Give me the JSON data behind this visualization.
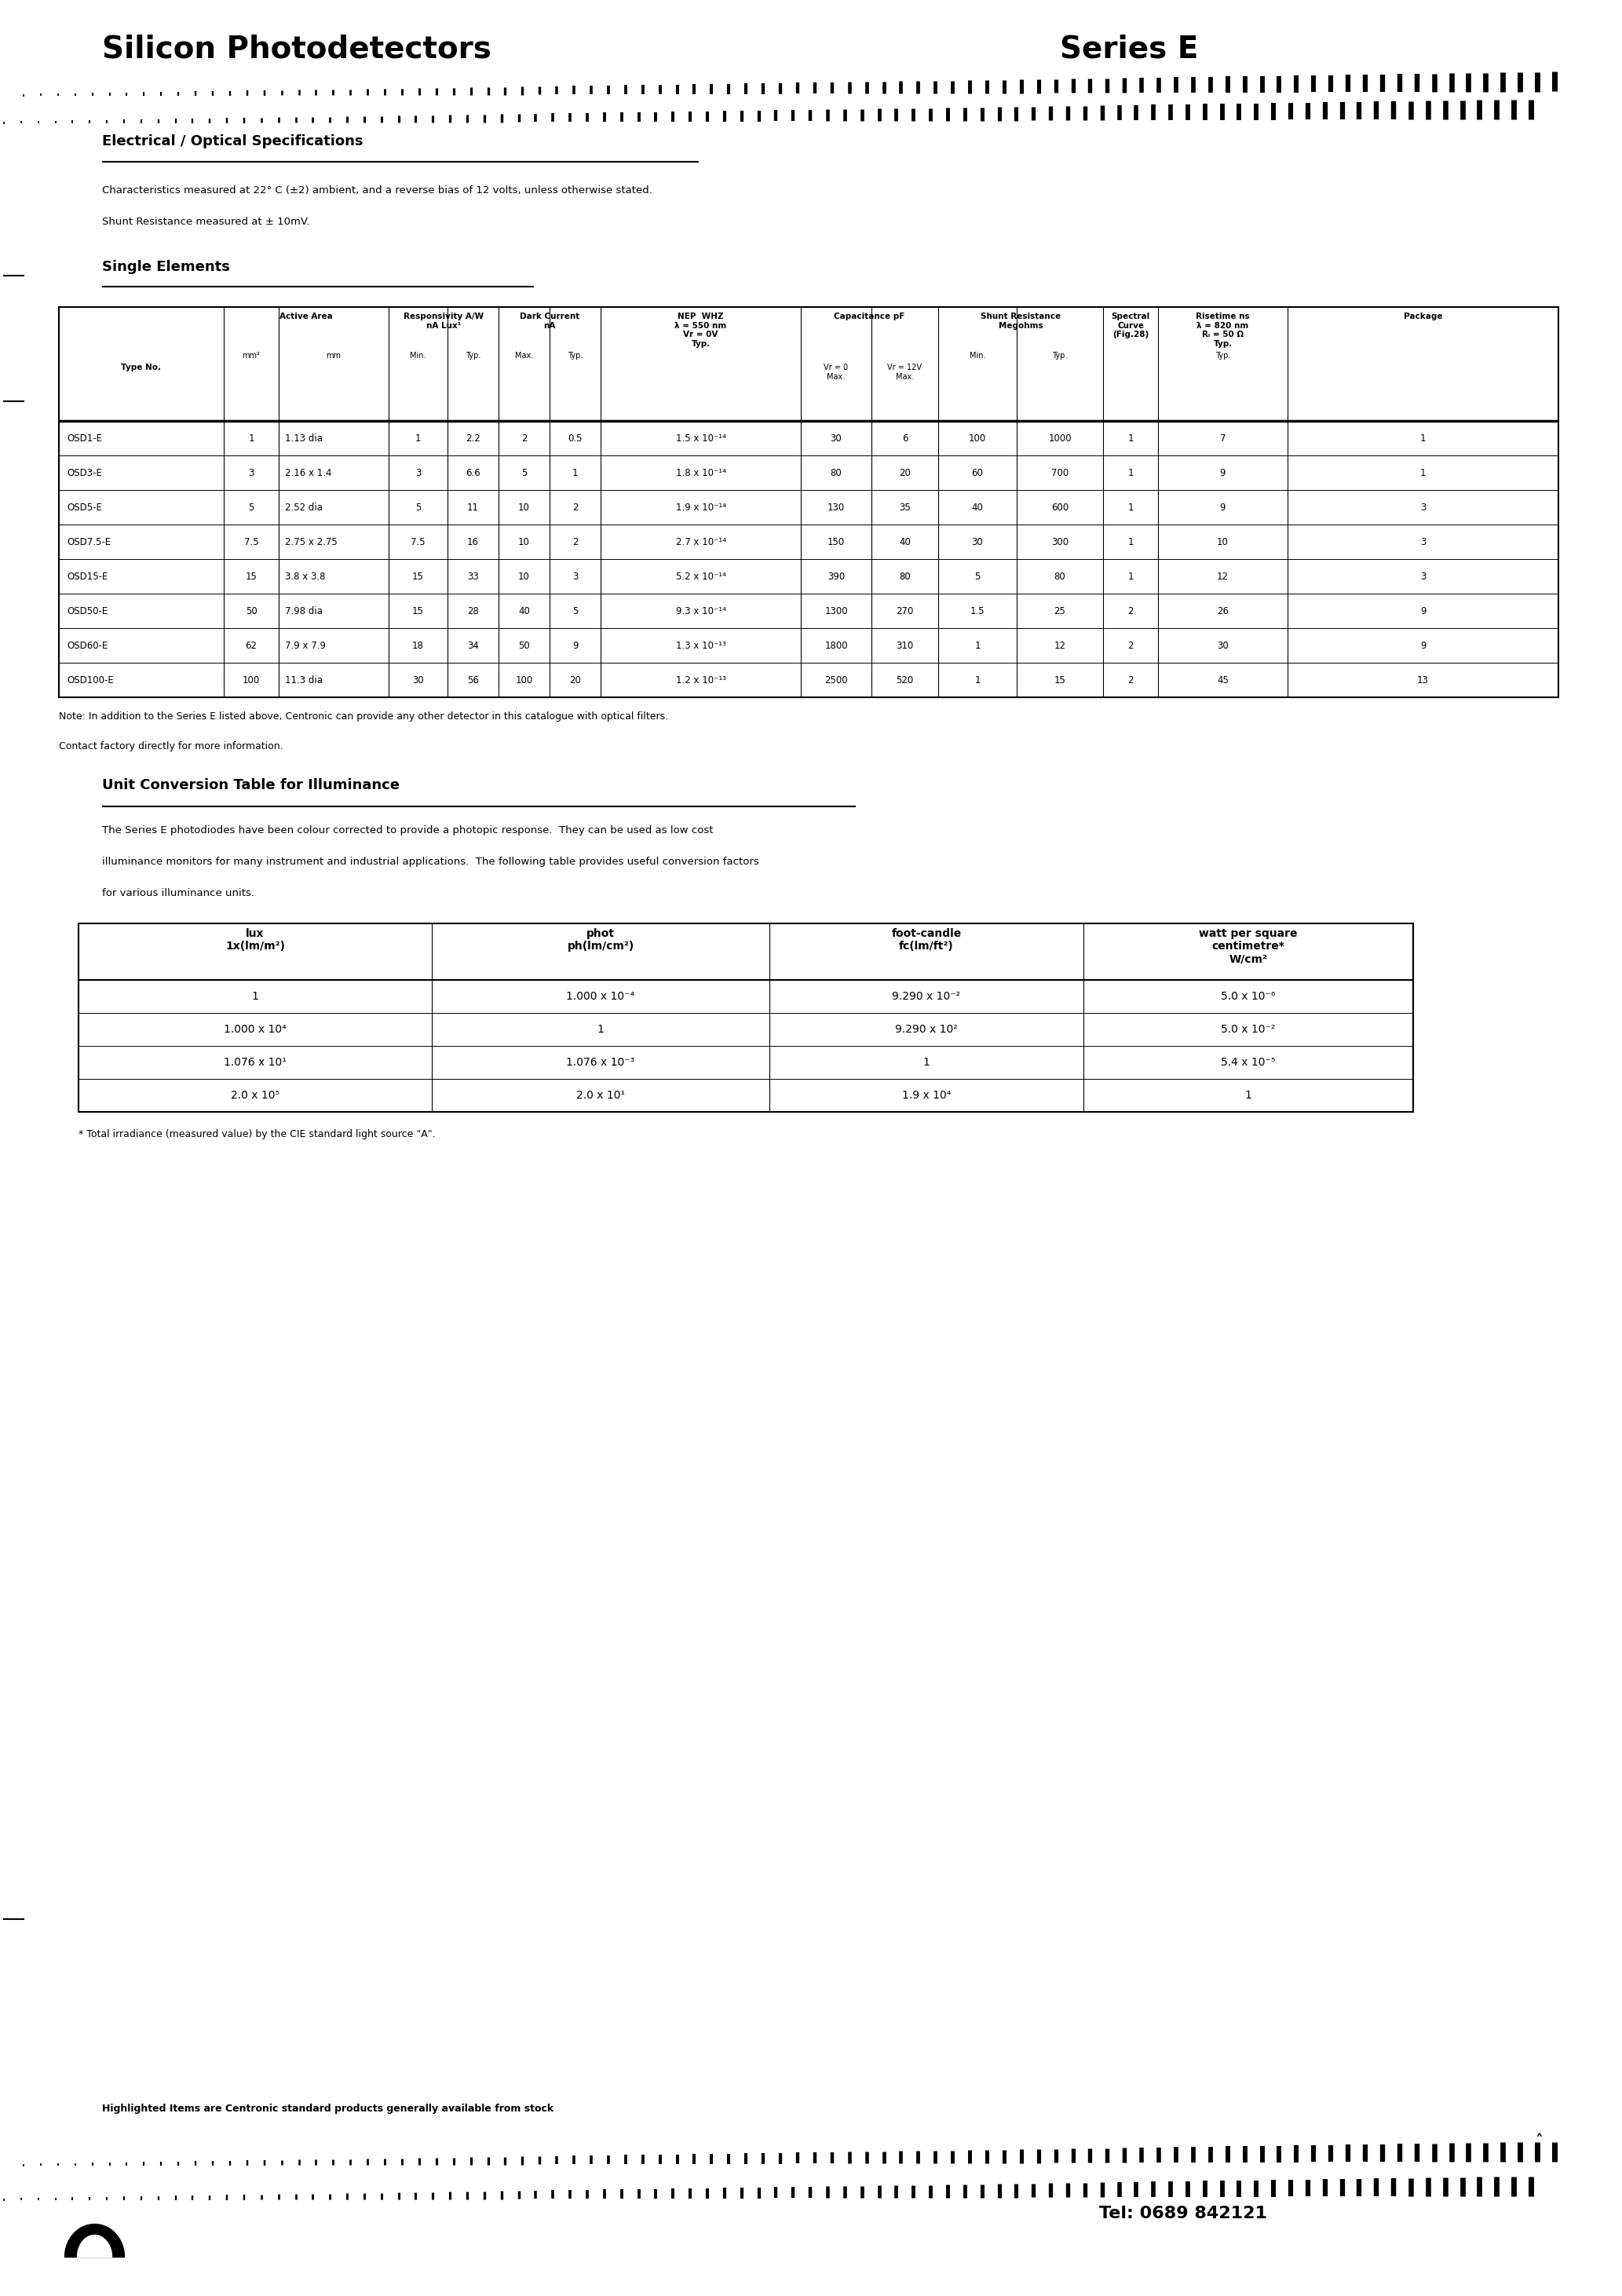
{
  "title_left": "Silicon Photodetectors",
  "title_right": "Series E",
  "section1_title": "Electrical / Optical Specifications",
  "section1_note1": "Characteristics measured at 22° C (±2) ambient, and a reverse bias of 12 volts, unless otherwise stated.",
  "section1_note2": "Shunt Resistance measured at ± 10mV.",
  "section2_title": "Single Elements",
  "table1_data": [
    [
      "OSD1-E",
      "1",
      "1.13 dia",
      "1",
      "2.2",
      "2",
      "0.5",
      "1.5 x 10⁻¹⁴",
      "30",
      "6",
      "100",
      "1000",
      "1",
      "7",
      "1"
    ],
    [
      "OSD3-E",
      "3",
      "2.16 x 1.4",
      "3",
      "6.6",
      "5",
      "1",
      "1.8 x 10⁻¹⁴",
      "80",
      "20",
      "60",
      "700",
      "1",
      "9",
      "1"
    ],
    [
      "OSD5-E",
      "5",
      "2.52 dia",
      "5",
      "11",
      "10",
      "2",
      "1.9 x 10⁻¹⁴",
      "130",
      "35",
      "40",
      "600",
      "1",
      "9",
      "3"
    ],
    [
      "OSD7.5-E",
      "7.5",
      "2.75 x 2.75",
      "7.5",
      "16",
      "10",
      "2",
      "2.7 x 10⁻¹⁴",
      "150",
      "40",
      "30",
      "300",
      "1",
      "10",
      "3"
    ],
    [
      "OSD15-E",
      "15",
      "3.8 x 3.8",
      "15",
      "33",
      "10",
      "3",
      "5.2 x 10⁻¹⁴",
      "390",
      "80",
      "5",
      "80",
      "1",
      "12",
      "3"
    ],
    [
      "OSD50-E",
      "50",
      "7.98 dia",
      "15",
      "28",
      "40",
      "5",
      "9.3 x 10⁻¹⁴",
      "1300",
      "270",
      "1.5",
      "25",
      "2",
      "26",
      "9"
    ],
    [
      "OSD60-E",
      "62",
      "7.9 x 7.9",
      "18",
      "34",
      "50",
      "9",
      "1.3 x 10⁻¹³",
      "1800",
      "310",
      "1",
      "12",
      "2",
      "30",
      "9"
    ],
    [
      "OSD100-E",
      "100",
      "11.3 dia",
      "30",
      "56",
      "100",
      "20",
      "1.2 x 10⁻¹³",
      "2500",
      "520",
      "1",
      "15",
      "2",
      "45",
      "13"
    ]
  ],
  "table1_note_line1": "Note: In addition to the Series E listed above, Centronic can provide any other detector in this catalogue with optical filters.",
  "table1_note_line2": "Contact factory directly for more information.",
  "section3_title": "Unit Conversion Table for Illuminance",
  "section3_line1": "The Series E photodiodes have been colour corrected to provide a photopic response.  They can be used as low cost",
  "section3_line2": "illuminance monitors for many instrument and industrial applications.  The following table provides useful conversion factors",
  "section3_line3": "for various illuminance units.",
  "table2_hdr": [
    "lux\n1x(lm/m²)",
    "phot\nph(lm/cm²)",
    "foot-candle\nfc(lm/ft²)",
    "watt per square\ncentimetre*\nW/cm²"
  ],
  "table2_data": [
    [
      "1",
      "1.000 x 10⁻⁴",
      "9.290 x 10⁻²",
      "5.0 x 10⁻⁶"
    ],
    [
      "1.000 x 10⁴",
      "1",
      "9.290 x 10²",
      "5.0 x 10⁻²"
    ],
    [
      "1.076 x 10¹",
      "1.076 x 10⁻³",
      "1",
      "5.4 x 10⁻⁵"
    ],
    [
      "2.0 x 10⁵",
      "2.0 x 10¹",
      "1.9 x 10⁴",
      "1"
    ]
  ],
  "table2_footnote": "* Total irradiance (measured value) by the CIE standard light source \"A\".",
  "footer_note": "Highlighted Items are Centronic standard products generally available from stock",
  "tel": "Tel: 0689 842121",
  "bg_color": "#ffffff"
}
